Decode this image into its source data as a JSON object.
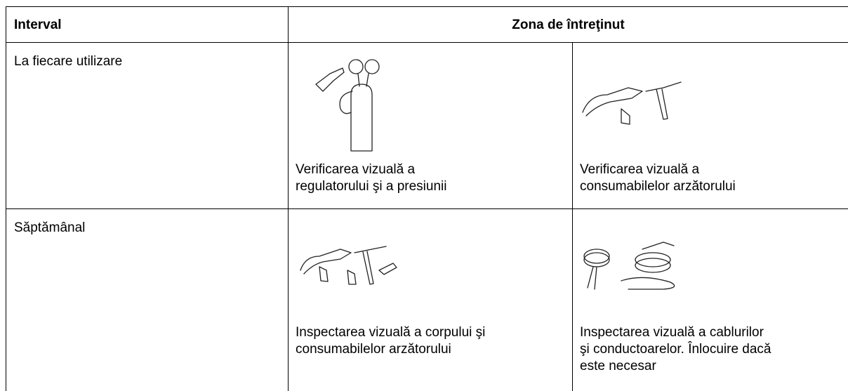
{
  "header": {
    "interval": "Interval",
    "zone": "Zona de întreţinut"
  },
  "rows": [
    {
      "interval": "La fiecare utilizare",
      "items": [
        "Verificarea vizuală a\nregulatorului şi a presiunii",
        "Verificarea vizuală a\nconsumabilelor arzătorului"
      ]
    },
    {
      "interval": "Săptămânal",
      "items": [
        "Inspectarea vizuală a corpului şi\nconsumabilelor arzătorului",
        "Inspectarea vizuală a cablurilor\nşi conductoarelor. Înlocuire dacă\neste necesar"
      ]
    }
  ]
}
